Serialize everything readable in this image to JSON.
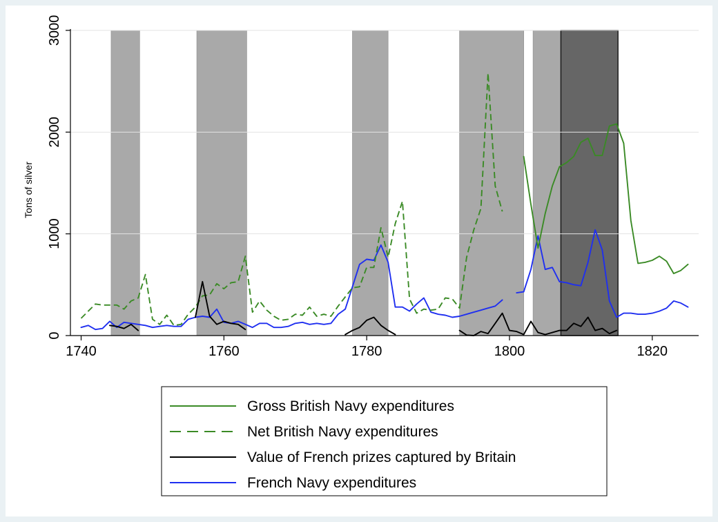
{
  "chart_data": {
    "type": "line",
    "ylabel": "Tons of silver",
    "xlabel": "",
    "xlim": [
      1738.5,
      1826.5
    ],
    "ylim": [
      0,
      3000
    ],
    "x_ticks": [
      1740,
      1760,
      1780,
      1800,
      1820
    ],
    "y_ticks": [
      0,
      1000,
      2000,
      3000
    ],
    "grid": "horizontal",
    "legend_position": "bottom",
    "shaded_periods": [
      {
        "start": 1744.2,
        "end": 1748.2,
        "shade": "medium"
      },
      {
        "start": 1756.2,
        "end": 1763.2,
        "shade": "medium"
      },
      {
        "start": 1778.0,
        "end": 1783.0,
        "shade": "medium"
      },
      {
        "start": 1793.0,
        "end": 1802.0,
        "shade": "medium"
      },
      {
        "start": 1803.3,
        "end": 1807.2,
        "shade": "medium"
      },
      {
        "start": 1807.2,
        "end": 1815.2,
        "shade": "dark"
      }
    ],
    "series": [
      {
        "name": "Gross British Navy expenditures",
        "color": "#3a8a25",
        "dash": "solid",
        "x": [
          1802,
          1803,
          1804,
          1805,
          1806,
          1807,
          1808,
          1809,
          1810,
          1811,
          1812,
          1813,
          1814,
          1815,
          1816,
          1817,
          1818,
          1819,
          1820,
          1821,
          1822,
          1823,
          1824,
          1825
        ],
        "y": [
          1760,
          1290,
          860,
          1200,
          1470,
          1660,
          1700,
          1760,
          1900,
          1940,
          1770,
          1770,
          2060,
          2080,
          1890,
          1130,
          710,
          720,
          740,
          780,
          730,
          610,
          640,
          700
        ]
      },
      {
        "name": "Net British Navy expenditures",
        "color": "#3a8a25",
        "dash": "dashed",
        "x": [
          1740,
          1741,
          1742,
          1743,
          1744,
          1745,
          1746,
          1747,
          1748,
          1749,
          1750,
          1751,
          1752,
          1753,
          1754,
          1755,
          1756,
          1757,
          1758,
          1759,
          1760,
          1761,
          1762,
          1763,
          1764,
          1765,
          1766,
          1767,
          1768,
          1769,
          1770,
          1771,
          1772,
          1773,
          1774,
          1775,
          1776,
          1777,
          1778,
          1779,
          1780,
          1781,
          1782,
          1783,
          1784,
          1785,
          1786,
          1787,
          1788,
          1789,
          1790,
          1791,
          1792,
          1793,
          1794,
          1795,
          1796,
          1797,
          1798,
          1799
        ],
        "y": [
          170,
          240,
          310,
          300,
          300,
          300,
          260,
          340,
          370,
          600,
          160,
          110,
          200,
          100,
          110,
          210,
          280,
          390,
          400,
          510,
          460,
          520,
          530,
          780,
          230,
          340,
          250,
          190,
          150,
          160,
          210,
          200,
          280,
          190,
          210,
          190,
          290,
          380,
          470,
          480,
          670,
          670,
          1060,
          770,
          1100,
          1320,
          360,
          220,
          260,
          250,
          260,
          370,
          360,
          270,
          770,
          1040,
          1250,
          2580,
          1470,
          1220
        ]
      },
      {
        "name": "Value of French prizes captured by Britain",
        "color": "#000000",
        "dash": "solid",
        "segments": [
          {
            "x": [
              1744,
              1745,
              1746,
              1747,
              1748
            ],
            "y": [
              100,
              90,
              70,
              110,
              50
            ]
          },
          {
            "x": [
              1756,
              1757,
              1758,
              1759,
              1760,
              1761,
              1762,
              1763
            ],
            "y": [
              180,
              530,
              190,
              110,
              140,
              120,
              110,
              60
            ]
          },
          {
            "x": [
              1777,
              1778,
              1779,
              1780,
              1781,
              1782,
              1783,
              1784
            ],
            "y": [
              10,
              50,
              80,
              150,
              180,
              100,
              50,
              10
            ]
          },
          {
            "x": [
              1793,
              1794,
              1795,
              1796,
              1797,
              1798,
              1799,
              1800,
              1801,
              1802,
              1803,
              1804,
              1805,
              1806,
              1807,
              1808,
              1809,
              1810,
              1811,
              1812,
              1813,
              1814,
              1815
            ],
            "y": [
              50,
              5,
              0,
              40,
              20,
              120,
              220,
              50,
              40,
              10,
              140,
              30,
              10,
              30,
              50,
              50,
              120,
              90,
              180,
              50,
              70,
              20,
              50
            ]
          }
        ]
      },
      {
        "name": "French Navy expenditures",
        "color": "#1f2ff0",
        "dash": "solid",
        "segments": [
          {
            "x": [
              1740,
              1741,
              1742,
              1743,
              1744,
              1745,
              1746,
              1747,
              1748,
              1749,
              1750,
              1751,
              1752,
              1753,
              1754,
              1755,
              1756,
              1757,
              1758,
              1759,
              1760,
              1761,
              1762,
              1763,
              1764,
              1765,
              1766,
              1767,
              1768,
              1769,
              1770,
              1771,
              1772,
              1773,
              1774,
              1775,
              1776,
              1777,
              1778,
              1779,
              1780,
              1781,
              1782,
              1783,
              1784,
              1785,
              1786,
              1787,
              1788,
              1789,
              1790,
              1791,
              1792,
              1793,
              1794,
              1795,
              1796,
              1797,
              1798,
              1799
            ],
            "y": [
              80,
              100,
              60,
              70,
              140,
              80,
              130,
              120,
              110,
              100,
              80,
              90,
              100,
              90,
              90,
              160,
              180,
              190,
              180,
              260,
              130,
              120,
              140,
              110,
              80,
              120,
              120,
              80,
              80,
              90,
              120,
              130,
              110,
              120,
              110,
              120,
              210,
              260,
              480,
              700,
              750,
              740,
              890,
              720,
              280,
              280,
              240,
              310,
              370,
              230,
              210,
              200,
              180,
              190,
              210,
              230,
              250,
              270,
              290,
              350
            ]
          },
          {
            "x": [
              1801,
              1802,
              1803,
              1804,
              1805,
              1806,
              1807,
              1808,
              1809,
              1810,
              1811,
              1812,
              1813,
              1814,
              1815,
              1816,
              1817,
              1818,
              1819,
              1820,
              1821,
              1822,
              1823,
              1824,
              1825
            ],
            "y": [
              420,
              430,
              650,
              980,
              650,
              670,
              530,
              520,
              500,
              490,
              720,
              1040,
              840,
              340,
              180,
              220,
              220,
              210,
              210,
              220,
              240,
              270,
              340,
              320,
              280
            ]
          }
        ]
      }
    ]
  }
}
